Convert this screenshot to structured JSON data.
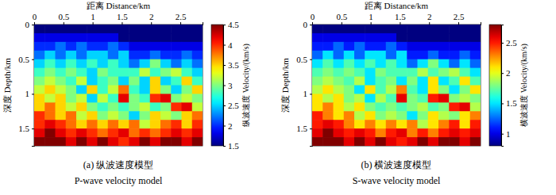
{
  "chart_data": [
    {
      "type": "heatmap",
      "title": "(a) 纵波速度模型",
      "subtitle": "P-wave velocity model",
      "x_label": "距离 Distance/km",
      "y_label": "深度 Depth/km",
      "colorbar_label": "纵波速度 Velocity/(km/s)",
      "xlim": [
        0,
        2.88
      ],
      "ylim": [
        0,
        1.75
      ],
      "xticks": [
        0,
        0.5,
        1,
        1.5,
        2,
        2.5
      ],
      "yticks": [
        0,
        0.5,
        1,
        1.5
      ],
      "x": [
        0.09,
        0.27,
        0.45,
        0.63,
        0.81,
        0.99,
        1.17,
        1.35,
        1.53,
        1.71,
        1.89,
        2.07,
        2.25,
        2.43,
        2.61,
        2.79
      ],
      "y": [
        0.0625,
        0.1875,
        0.3125,
        0.4375,
        0.5625,
        0.6875,
        0.8125,
        0.9375,
        1.0625,
        1.1875,
        1.3125,
        1.4375,
        1.5625,
        1.6875
      ],
      "z": [
        [
          1.5,
          1.5,
          1.5,
          1.5,
          1.5,
          1.5,
          1.5,
          1.5,
          1.5,
          1.5,
          1.5,
          1.5,
          1.5,
          1.5,
          1.5,
          1.5
        ],
        [
          1.8,
          1.8,
          1.8,
          1.8,
          1.8,
          1.8,
          1.8,
          1.8,
          1.5,
          1.5,
          1.5,
          1.5,
          1.5,
          1.5,
          1.5,
          1.5
        ],
        [
          2.0,
          2.0,
          2.2,
          2.0,
          2.2,
          2.0,
          2.0,
          2.2,
          2.0,
          1.8,
          1.8,
          1.8,
          1.8,
          1.8,
          1.8,
          1.8
        ],
        [
          2.2,
          2.5,
          2.2,
          2.5,
          2.2,
          2.5,
          2.5,
          2.2,
          2.5,
          2.0,
          2.0,
          2.2,
          2.0,
          2.0,
          2.2,
          2.0
        ],
        [
          2.5,
          2.8,
          2.5,
          2.8,
          2.5,
          2.8,
          2.5,
          2.8,
          2.5,
          2.2,
          2.5,
          3.0,
          2.5,
          2.2,
          2.5,
          2.2
        ],
        [
          2.8,
          3.0,
          2.8,
          3.0,
          2.8,
          2.5,
          3.0,
          2.8,
          2.8,
          2.8,
          3.2,
          2.8,
          3.0,
          3.2,
          2.8,
          2.5
        ],
        [
          3.0,
          3.2,
          3.0,
          2.8,
          3.2,
          2.5,
          2.8,
          3.0,
          2.5,
          3.0,
          2.5,
          3.5,
          2.5,
          2.8,
          3.5,
          2.8
        ],
        [
          3.2,
          3.5,
          3.2,
          3.0,
          2.5,
          3.5,
          2.8,
          3.2,
          3.8,
          2.8,
          2.5,
          3.5,
          3.0,
          2.5,
          3.0,
          3.5
        ],
        [
          3.5,
          3.2,
          3.5,
          3.0,
          3.2,
          2.5,
          3.2,
          2.8,
          4.2,
          3.0,
          2.8,
          4.0,
          4.2,
          3.0,
          3.2,
          3.0
        ],
        [
          3.5,
          3.8,
          3.5,
          3.2,
          3.5,
          3.0,
          2.8,
          3.0,
          2.8,
          3.0,
          3.2,
          2.8,
          3.0,
          4.0,
          4.2,
          3.2
        ],
        [
          4.0,
          3.8,
          3.5,
          3.8,
          3.2,
          3.5,
          3.0,
          3.2,
          3.0,
          2.5,
          3.0,
          3.5,
          3.2,
          3.0,
          3.5,
          3.8
        ],
        [
          4.0,
          4.2,
          4.0,
          3.8,
          3.5,
          3.8,
          3.5,
          3.8,
          3.5,
          3.8,
          3.2,
          3.5,
          3.8,
          4.0,
          3.5,
          4.0
        ],
        [
          4.2,
          4.5,
          4.2,
          4.0,
          4.2,
          4.0,
          3.8,
          4.0,
          4.2,
          3.8,
          4.0,
          3.8,
          4.0,
          4.2,
          4.0,
          4.2
        ],
        [
          4.5,
          4.5,
          4.5,
          4.2,
          4.5,
          4.2,
          4.5,
          4.2,
          4.0,
          4.2,
          4.5,
          4.2,
          4.5,
          4.5,
          4.2,
          4.5
        ]
      ],
      "color_range": [
        1.5,
        4.5
      ],
      "color_ticks": [
        1.5,
        2,
        2.5,
        3,
        3.5,
        4,
        4.5
      ]
    },
    {
      "type": "heatmap",
      "title": "(b) 横波速度模型",
      "subtitle": "S-wave velocity model",
      "x_label": "距离 Distance/km",
      "y_label": "深度 Depth/km",
      "colorbar_label": "横波速度 Velocity/(km/s)",
      "xlim": [
        0,
        2.88
      ],
      "ylim": [
        0,
        1.75
      ],
      "xticks": [
        0,
        0.5,
        1,
        1.5,
        2,
        2.5
      ],
      "yticks": [
        0,
        0.5,
        1,
        1.5
      ],
      "x": [
        0.09,
        0.27,
        0.45,
        0.63,
        0.81,
        0.99,
        1.17,
        1.35,
        1.53,
        1.71,
        1.89,
        2.07,
        2.25,
        2.43,
        2.61,
        2.79
      ],
      "y": [
        0.0625,
        0.1875,
        0.3125,
        0.4375,
        0.5625,
        0.6875,
        0.8125,
        0.9375,
        1.0625,
        1.1875,
        1.3125,
        1.4375,
        1.5625,
        1.6875
      ],
      "z": [
        [
          0.8,
          0.8,
          0.8,
          0.8,
          0.8,
          0.8,
          0.8,
          0.8,
          0.8,
          0.8,
          0.8,
          0.8,
          0.8,
          0.8,
          0.8,
          0.8
        ],
        [
          1.0,
          1.0,
          1.0,
          1.0,
          1.0,
          1.0,
          1.0,
          1.0,
          0.8,
          0.8,
          0.8,
          0.8,
          0.8,
          0.8,
          0.8,
          0.8
        ],
        [
          1.1,
          1.1,
          1.25,
          1.1,
          1.25,
          1.1,
          1.1,
          1.25,
          1.1,
          1.0,
          1.0,
          1.0,
          1.0,
          1.0,
          1.0,
          1.0
        ],
        [
          1.25,
          1.5,
          1.25,
          1.5,
          1.25,
          1.5,
          1.5,
          1.25,
          1.5,
          1.1,
          1.1,
          1.25,
          1.1,
          1.1,
          1.25,
          1.1
        ],
        [
          1.5,
          1.7,
          1.5,
          1.7,
          1.5,
          1.7,
          1.5,
          1.7,
          1.5,
          1.25,
          1.5,
          1.8,
          1.5,
          1.25,
          1.5,
          1.25
        ],
        [
          1.7,
          1.8,
          1.7,
          1.8,
          1.7,
          1.5,
          1.8,
          1.7,
          1.7,
          1.7,
          1.9,
          1.7,
          1.8,
          1.9,
          1.7,
          1.5
        ],
        [
          1.8,
          1.9,
          1.8,
          1.7,
          1.9,
          1.5,
          1.7,
          1.8,
          1.5,
          1.8,
          1.5,
          2.1,
          1.5,
          1.7,
          2.1,
          1.7
        ],
        [
          1.9,
          2.1,
          1.9,
          1.8,
          1.5,
          2.1,
          1.7,
          1.9,
          2.3,
          1.7,
          1.5,
          2.1,
          1.8,
          1.5,
          1.8,
          2.1
        ],
        [
          2.1,
          1.9,
          2.1,
          1.8,
          1.9,
          1.5,
          1.9,
          1.7,
          2.6,
          1.8,
          1.7,
          2.5,
          2.6,
          1.8,
          1.9,
          1.8
        ],
        [
          2.1,
          2.3,
          2.1,
          1.9,
          2.1,
          1.8,
          1.7,
          1.8,
          1.7,
          1.8,
          1.9,
          1.7,
          1.8,
          2.5,
          2.6,
          1.9
        ],
        [
          2.5,
          2.3,
          2.1,
          2.3,
          1.9,
          2.1,
          1.8,
          1.9,
          1.8,
          1.5,
          1.8,
          2.1,
          1.9,
          1.8,
          2.1,
          2.3
        ],
        [
          2.5,
          2.6,
          2.5,
          2.3,
          2.1,
          2.3,
          2.1,
          2.3,
          2.1,
          2.3,
          1.9,
          2.1,
          2.3,
          2.5,
          2.1,
          2.5
        ],
        [
          2.6,
          2.8,
          2.6,
          2.5,
          2.6,
          2.5,
          2.3,
          2.5,
          2.6,
          2.3,
          2.5,
          2.3,
          2.5,
          2.6,
          2.5,
          2.6
        ],
        [
          2.8,
          2.8,
          2.8,
          2.6,
          2.8,
          2.6,
          2.8,
          2.6,
          2.5,
          2.6,
          2.8,
          2.6,
          2.8,
          2.8,
          2.6,
          2.8
        ]
      ],
      "color_range": [
        0.8,
        2.8
      ],
      "color_ticks": [
        1,
        1.5,
        2,
        2.5
      ]
    }
  ]
}
